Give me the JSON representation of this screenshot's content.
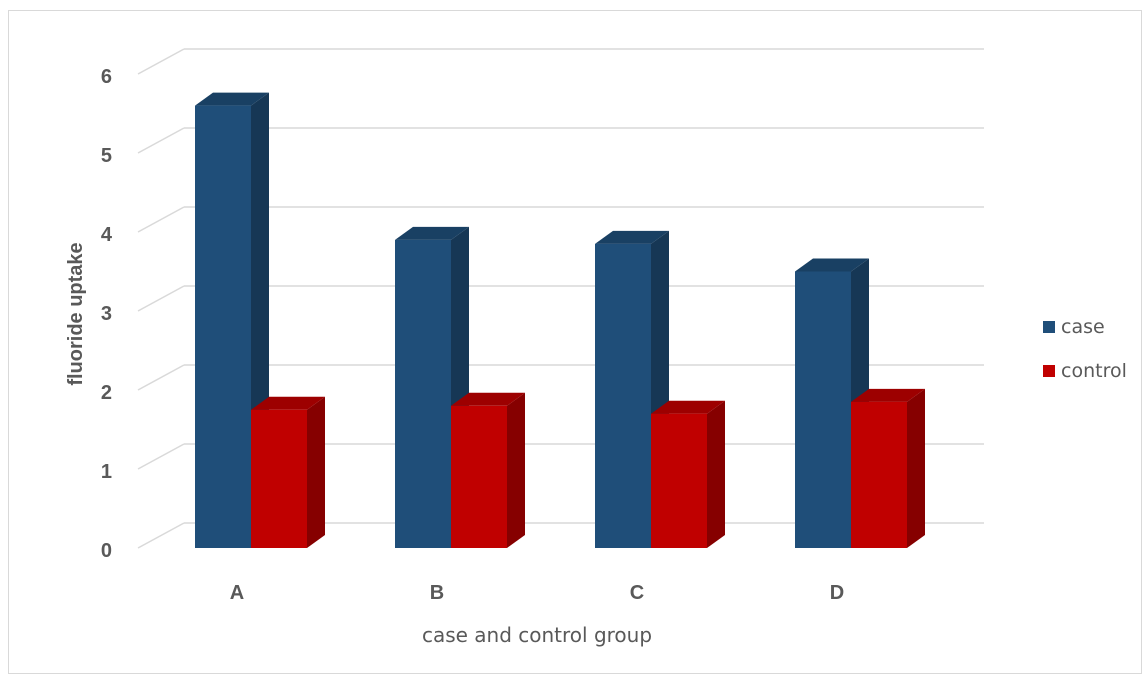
{
  "chart_data": {
    "type": "bar",
    "style": "3d-clustered-column",
    "categories": [
      "A",
      "B",
      "C",
      "D"
    ],
    "series": [
      {
        "name": "case",
        "values": [
          5.6,
          3.9,
          3.85,
          3.5
        ],
        "color": "#1f4e79"
      },
      {
        "name": "control",
        "values": [
          1.75,
          1.8,
          1.7,
          1.85
        ],
        "color": "#c00000"
      }
    ],
    "title": "",
    "xlabel": "case and control group",
    "ylabel": "fluoride uptake",
    "ylim": [
      0,
      6
    ],
    "yticks": [
      "0",
      "1",
      "2",
      "3",
      "4",
      "5",
      "6"
    ],
    "grid": true,
    "legend_position": "right"
  }
}
